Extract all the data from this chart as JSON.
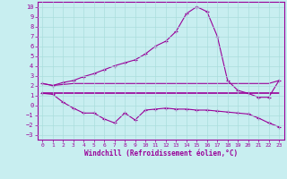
{
  "xlabel": "Windchill (Refroidissement éolien,°C)",
  "xlim": [
    -0.5,
    23.5
  ],
  "ylim": [
    -3.5,
    10.5
  ],
  "xticks": [
    0,
    1,
    2,
    3,
    4,
    5,
    6,
    7,
    8,
    9,
    10,
    11,
    12,
    13,
    14,
    15,
    16,
    17,
    18,
    19,
    20,
    21,
    22,
    23
  ],
  "yticks": [
    -3,
    -2,
    -1,
    0,
    1,
    2,
    3,
    4,
    5,
    6,
    7,
    8,
    9,
    10
  ],
  "bg_color": "#c8eef0",
  "line_color": "#990099",
  "grid_color": "#aadddd",
  "line1_x": [
    0,
    1,
    2,
    3,
    4,
    5,
    6,
    7,
    8,
    9,
    10,
    11,
    12,
    13,
    14,
    15,
    16,
    17,
    18,
    19,
    20,
    21,
    22,
    23
  ],
  "line1_y": [
    2.2,
    2.0,
    2.3,
    2.5,
    2.9,
    3.2,
    3.6,
    4.0,
    4.3,
    4.6,
    5.2,
    6.0,
    6.5,
    7.5,
    9.3,
    10.0,
    9.5,
    7.0,
    2.5,
    1.5,
    1.2,
    0.8,
    0.8,
    2.5
  ],
  "line2_x": [
    0,
    1,
    2,
    3,
    4,
    5,
    6,
    7,
    8,
    9,
    10,
    11,
    12,
    13,
    14,
    15,
    16,
    17,
    18,
    19,
    20,
    21,
    22,
    23
  ],
  "line2_y": [
    2.2,
    2.0,
    2.1,
    2.2,
    2.2,
    2.2,
    2.2,
    2.2,
    2.2,
    2.2,
    2.2,
    2.2,
    2.2,
    2.2,
    2.2,
    2.2,
    2.2,
    2.2,
    2.2,
    2.2,
    2.2,
    2.2,
    2.2,
    2.5
  ],
  "line3_x": [
    0,
    1,
    2,
    3,
    4,
    5,
    6,
    7,
    8,
    9,
    10,
    11,
    12,
    13,
    14,
    15,
    16,
    17,
    18,
    19,
    20,
    21,
    22,
    23
  ],
  "line3_y": [
    1.2,
    1.1,
    0.3,
    -0.3,
    -0.8,
    -0.8,
    -1.4,
    -1.8,
    -0.8,
    -1.5,
    -0.5,
    -0.4,
    -0.3,
    -0.4,
    -0.4,
    -0.5,
    -0.5,
    -0.6,
    -0.7,
    -0.8,
    -0.9,
    -1.3,
    -1.8,
    -2.2
  ],
  "line4_x": [
    0,
    1,
    2,
    3,
    4,
    5,
    6,
    7,
    8,
    9,
    10,
    11,
    12,
    13,
    14,
    15,
    16,
    17,
    18,
    19,
    20,
    21,
    22,
    23
  ],
  "line4_y": [
    1.2,
    1.2,
    1.2,
    1.2,
    1.2,
    1.2,
    1.2,
    1.2,
    1.2,
    1.2,
    1.2,
    1.2,
    1.2,
    1.2,
    1.2,
    1.2,
    1.2,
    1.2,
    1.2,
    1.2,
    1.2,
    1.2,
    1.2,
    1.2
  ],
  "marker": "+"
}
